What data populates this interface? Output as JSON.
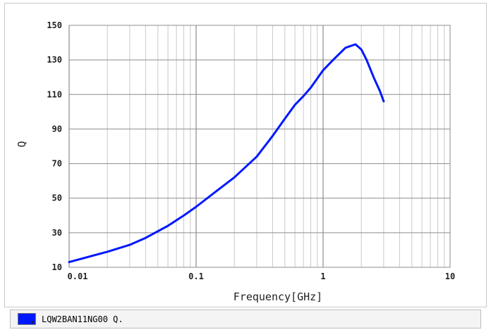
{
  "chart_data": {
    "type": "line",
    "xlabel": "Frequency[GHz]",
    "ylabel": "Q",
    "x_scale": "log",
    "xlim": [
      0.01,
      10
    ],
    "ylim": [
      10,
      150
    ],
    "grid": true,
    "x_ticks": [
      "0.01",
      "0.1",
      "1",
      "10"
    ],
    "y_ticks": [
      "10",
      "30",
      "50",
      "70",
      "90",
      "110",
      "130",
      "150"
    ],
    "series": [
      {
        "name": "LQW2BAN11NG00 Q.",
        "color": "#0018ff",
        "x": [
          0.01,
          0.02,
          0.03,
          0.04,
          0.06,
          0.08,
          0.1,
          0.15,
          0.2,
          0.3,
          0.4,
          0.5,
          0.6,
          0.7,
          0.8,
          1.0,
          1.2,
          1.5,
          1.8,
          2.0,
          2.2,
          2.5,
          2.8,
          3.0
        ],
        "y": [
          13,
          19,
          23,
          27,
          34,
          40,
          45,
          55,
          62,
          74,
          86,
          96,
          104,
          109,
          114,
          124,
          130,
          137,
          139,
          136,
          130,
          120,
          112,
          106
        ]
      }
    ]
  },
  "legend": {
    "label": "LQW2BAN11NG00 Q."
  }
}
